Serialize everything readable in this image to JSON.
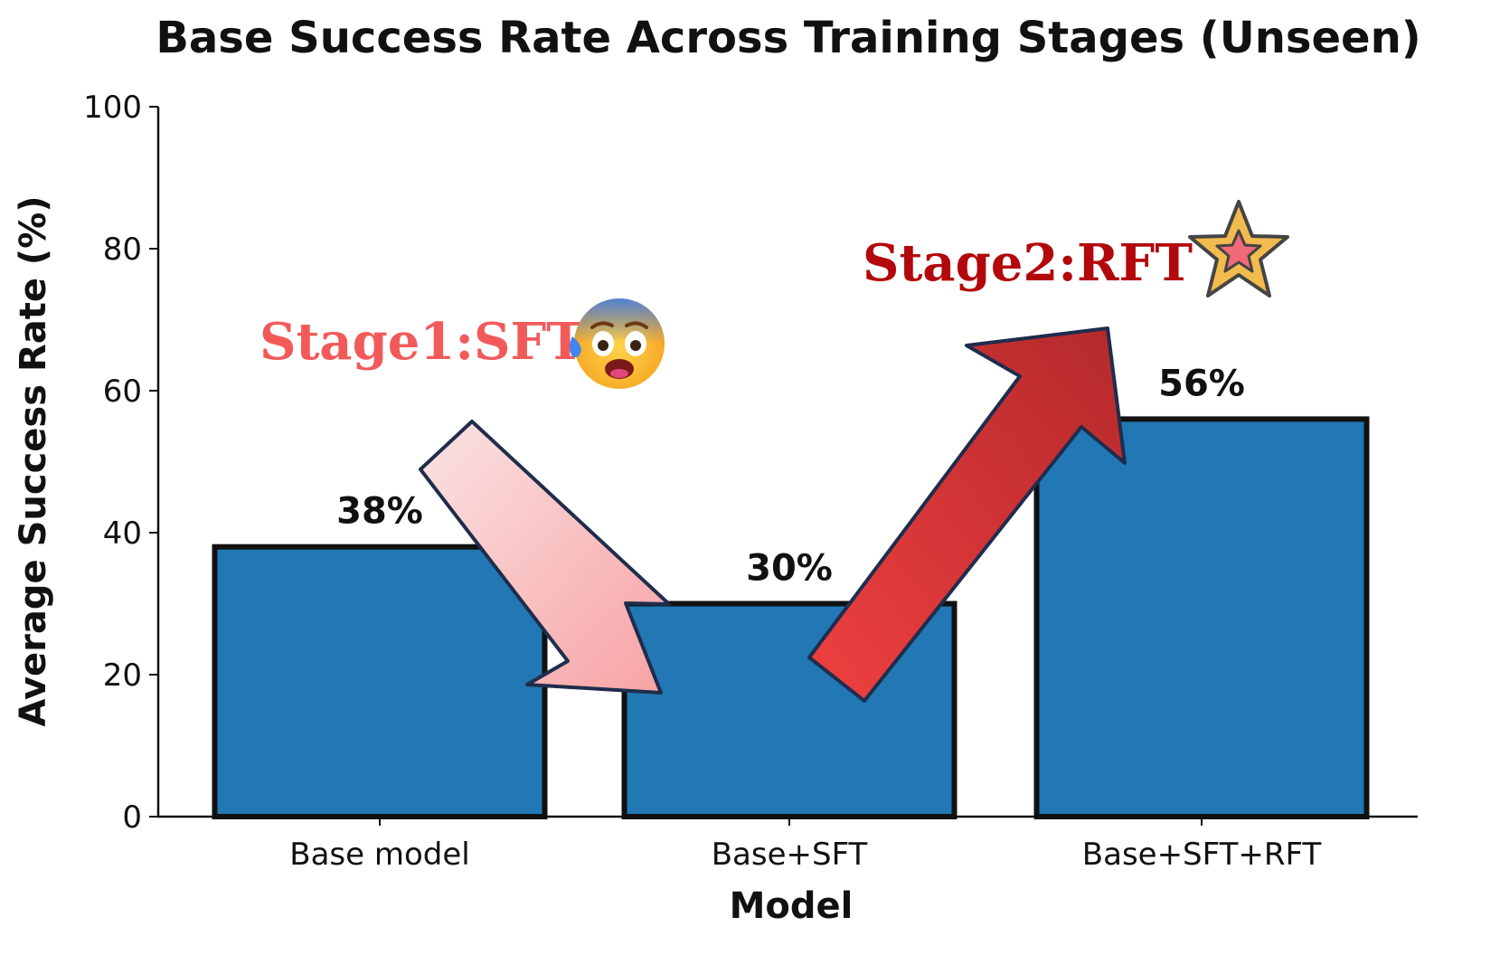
{
  "chart_data": {
    "type": "bar",
    "title": "Base Success Rate Across Training Stages (Unseen)",
    "xlabel": "Model",
    "ylabel": "Average Success Rate (%)",
    "categories": [
      "Base model",
      "Base+SFT",
      "Base+SFT+RFT"
    ],
    "values": [
      38,
      30,
      56
    ],
    "data_labels": [
      "38%",
      "30%",
      "56%"
    ],
    "ylim": [
      0,
      100
    ],
    "yticks": [
      "0",
      "20",
      "40",
      "60",
      "80",
      "100"
    ],
    "grid": false,
    "bar_color": "#2178b4",
    "annotations": {
      "stage1": "Stage1:SFT",
      "stage2": "Stage2:RFT"
    }
  },
  "colors": {
    "stage1_text": "#f25a5a",
    "stage2_text": "#b3080c",
    "down_arrow_gradient": [
      "#fbe3e3",
      "#f7a2a4"
    ],
    "up_arrow_gradient": [
      "#b4292b",
      "#ef4040"
    ],
    "arrow_outline": "#1f2d4d"
  },
  "icons": {
    "stage1_icon": "anxious-face-with-sweat-icon",
    "stage2_icon": "star-icon"
  }
}
